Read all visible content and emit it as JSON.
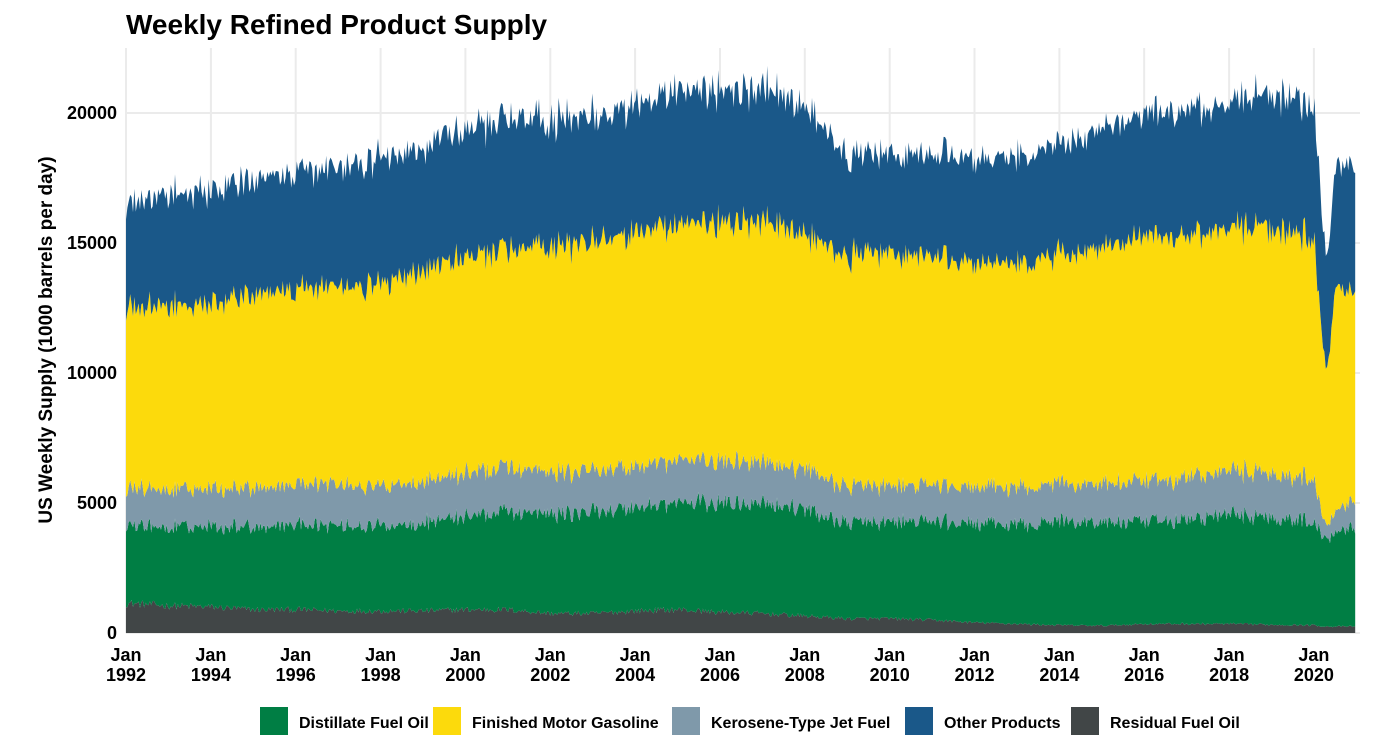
{
  "chart_data": {
    "type": "area",
    "stacked": true,
    "title": "Weekly Refined Product Supply",
    "xlabel": "",
    "ylabel": "US Weekly Supply (1000 barrels per day)",
    "ylim": [
      0,
      22500
    ],
    "xlim": [
      "1992-01-01",
      "2021-02-01"
    ],
    "y_ticks": [
      0,
      5000,
      10000,
      15000,
      20000
    ],
    "x_ticks": [
      {
        "date": "1992-01-01",
        "label_top": "Jan",
        "label_bottom": "1992"
      },
      {
        "date": "1994-01-01",
        "label_top": "Jan",
        "label_bottom": "1994"
      },
      {
        "date": "1996-01-01",
        "label_top": "Jan",
        "label_bottom": "1996"
      },
      {
        "date": "1998-01-01",
        "label_top": "Jan",
        "label_bottom": "1998"
      },
      {
        "date": "2000-01-01",
        "label_top": "Jan",
        "label_bottom": "2000"
      },
      {
        "date": "2002-01-01",
        "label_top": "Jan",
        "label_bottom": "2002"
      },
      {
        "date": "2004-01-01",
        "label_top": "Jan",
        "label_bottom": "2004"
      },
      {
        "date": "2006-01-01",
        "label_top": "Jan",
        "label_bottom": "2006"
      },
      {
        "date": "2008-01-01",
        "label_top": "Jan",
        "label_bottom": "2008"
      },
      {
        "date": "2010-01-01",
        "label_top": "Jan",
        "label_bottom": "2010"
      },
      {
        "date": "2012-01-01",
        "label_top": "Jan",
        "label_bottom": "2012"
      },
      {
        "date": "2014-01-01",
        "label_top": "Jan",
        "label_bottom": "2014"
      },
      {
        "date": "2016-01-01",
        "label_top": "Jan",
        "label_bottom": "2016"
      },
      {
        "date": "2018-01-01",
        "label_top": "Jan",
        "label_bottom": "2018"
      },
      {
        "date": "2020-01-01",
        "label_top": "Jan",
        "label_bottom": "2020"
      }
    ],
    "grid": true,
    "legend_position": "bottom",
    "stack_order_bottom_to_top": [
      "Residual Fuel Oil",
      "Distillate Fuel Oil",
      "Kerosene-Type Jet Fuel",
      "Finished Motor Gasoline",
      "Other Products"
    ],
    "x": [
      "1992-01-01",
      "1993-01-01",
      "1994-01-01",
      "1995-01-01",
      "1996-01-01",
      "1997-01-01",
      "1998-01-01",
      "1999-01-01",
      "2000-01-01",
      "2001-01-01",
      "2002-01-01",
      "2003-01-01",
      "2004-01-01",
      "2005-01-01",
      "2006-01-01",
      "2007-01-01",
      "2008-01-01",
      "2009-01-01",
      "2010-01-01",
      "2011-01-01",
      "2012-01-01",
      "2013-01-01",
      "2014-01-01",
      "2015-01-01",
      "2016-01-01",
      "2017-01-01",
      "2018-01-01",
      "2019-01-01",
      "2020-01-01",
      "2020-04-15",
      "2020-07-01",
      "2021-01-01"
    ],
    "series": [
      {
        "name": "Residual Fuel Oil",
        "color": "#414647",
        "values": [
          1150,
          1050,
          1000,
          900,
          900,
          850,
          850,
          850,
          900,
          900,
          750,
          750,
          850,
          900,
          800,
          750,
          650,
          550,
          550,
          500,
          400,
          350,
          300,
          280,
          350,
          350,
          350,
          320,
          300,
          250,
          250,
          250
        ]
      },
      {
        "name": "Distillate Fuel Oil",
        "color": "#007e44",
        "values": [
          3000,
          3000,
          3100,
          3200,
          3300,
          3300,
          3300,
          3400,
          3600,
          3800,
          3800,
          3900,
          4000,
          4100,
          4200,
          4300,
          4100,
          3700,
          3700,
          3800,
          3800,
          3800,
          4000,
          4000,
          3900,
          4000,
          4200,
          4150,
          4000,
          3300,
          3700,
          3900
        ]
      },
      {
        "name": "Kerosene-Type Jet Fuel",
        "color": "#7f99aa",
        "values": [
          1450,
          1450,
          1500,
          1500,
          1550,
          1550,
          1550,
          1600,
          1650,
          1700,
          1600,
          1600,
          1600,
          1650,
          1600,
          1600,
          1550,
          1400,
          1400,
          1400,
          1400,
          1400,
          1450,
          1500,
          1550,
          1650,
          1700,
          1700,
          1650,
          500,
          800,
          1100
        ]
      },
      {
        "name": "Finished Motor Gasoline",
        "color": "#fcda0c",
        "values": [
          6900,
          7100,
          7200,
          7400,
          7500,
          7600,
          7800,
          8100,
          8300,
          8400,
          8700,
          8800,
          9000,
          9100,
          9200,
          9300,
          9000,
          8900,
          8900,
          8800,
          8600,
          8700,
          8800,
          9100,
          9300,
          9300,
          9400,
          9400,
          9300,
          5700,
          8500,
          8000
        ]
      },
      {
        "name": "Other Products",
        "color": "#1a5889",
        "values": [
          4000,
          4300,
          4400,
          4400,
          4500,
          4600,
          4800,
          4800,
          4900,
          5000,
          4800,
          4850,
          4900,
          5100,
          5100,
          5100,
          4900,
          3800,
          3800,
          3900,
          4000,
          4100,
          4300,
          4600,
          4700,
          4800,
          4800,
          5200,
          5100,
          4500,
          4600,
          4800
        ]
      }
    ],
    "legend": [
      "Distillate Fuel Oil",
      "Finished Motor Gasoline",
      "Kerosene-Type Jet Fuel",
      "Other Products",
      "Residual Fuel Oil"
    ]
  }
}
